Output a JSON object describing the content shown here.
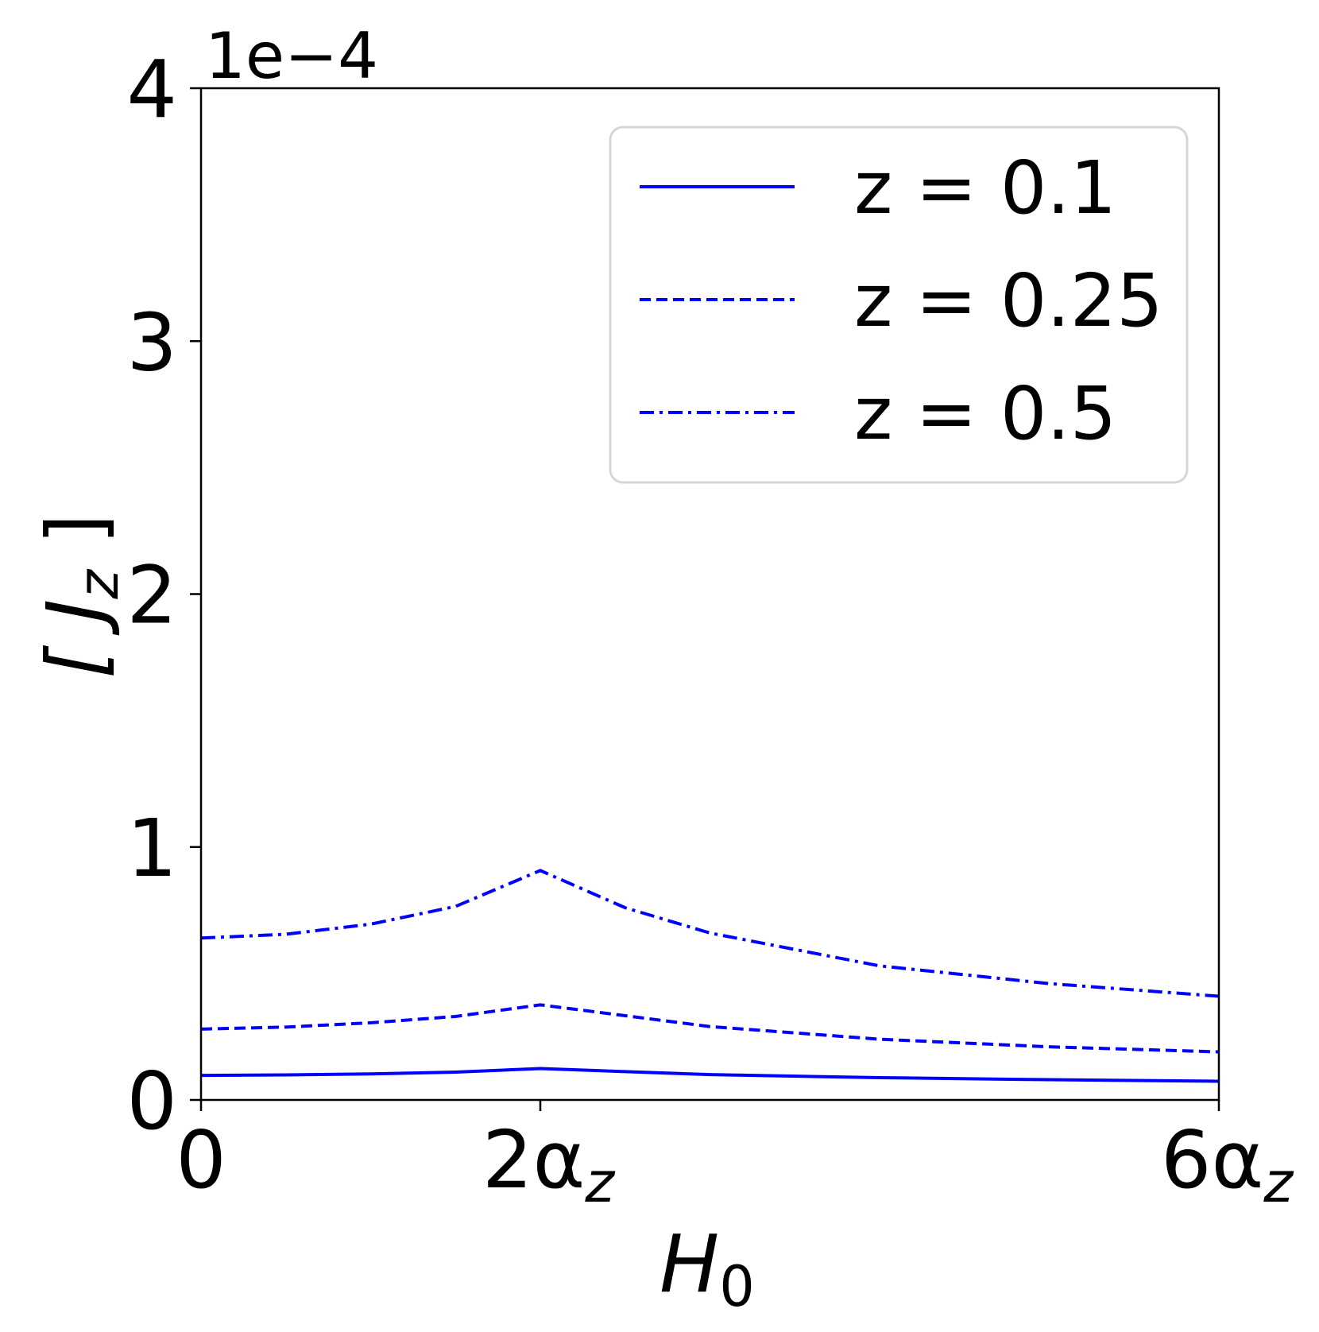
{
  "chart_data": {
    "type": "line",
    "title": "",
    "xlabel": "H",
    "xlabel_sub": "0",
    "ylabel": "[ J",
    "ylabel_sub": "z",
    "ylabel_close": " ]",
    "y_offset_label": "1e−4",
    "xlim": [
      0,
      6
    ],
    "ylim": [
      0,
      4
    ],
    "x_unit": "α_z",
    "x_ticks": [
      {
        "value": 0,
        "label": "0",
        "sub": ""
      },
      {
        "value": 2,
        "label": "2α",
        "sub": "z"
      },
      {
        "value": 6,
        "label": "6α",
        "sub": "z"
      }
    ],
    "y_ticks": [
      {
        "value": 0,
        "label": "0"
      },
      {
        "value": 1,
        "label": "1"
      },
      {
        "value": 2,
        "label": "2"
      },
      {
        "value": 3,
        "label": "3"
      },
      {
        "value": 4,
        "label": "4"
      }
    ],
    "grid": false,
    "legend_position": "top-right",
    "color": "#0000ff",
    "series": [
      {
        "name": "z = 0.1",
        "style": "solid",
        "x": [
          0,
          0.5,
          1,
          1.5,
          2,
          3,
          4,
          5,
          6
        ],
        "y": [
          0.097,
          0.099,
          0.103,
          0.11,
          0.124,
          0.1,
          0.088,
          0.08,
          0.074
        ]
      },
      {
        "name": "z = 0.25",
        "style": "dashed",
        "x": [
          0,
          0.5,
          1,
          1.5,
          2,
          3,
          4,
          5,
          6
        ],
        "y": [
          0.28,
          0.288,
          0.305,
          0.33,
          0.376,
          0.29,
          0.24,
          0.21,
          0.19
        ]
      },
      {
        "name": "z = 0.5",
        "style": "dashdot",
        "x": [
          0,
          0.5,
          1,
          1.5,
          2,
          2.5,
          3,
          4,
          5,
          6
        ],
        "y": [
          0.64,
          0.655,
          0.695,
          0.765,
          0.907,
          0.76,
          0.66,
          0.53,
          0.46,
          0.41
        ]
      }
    ]
  }
}
